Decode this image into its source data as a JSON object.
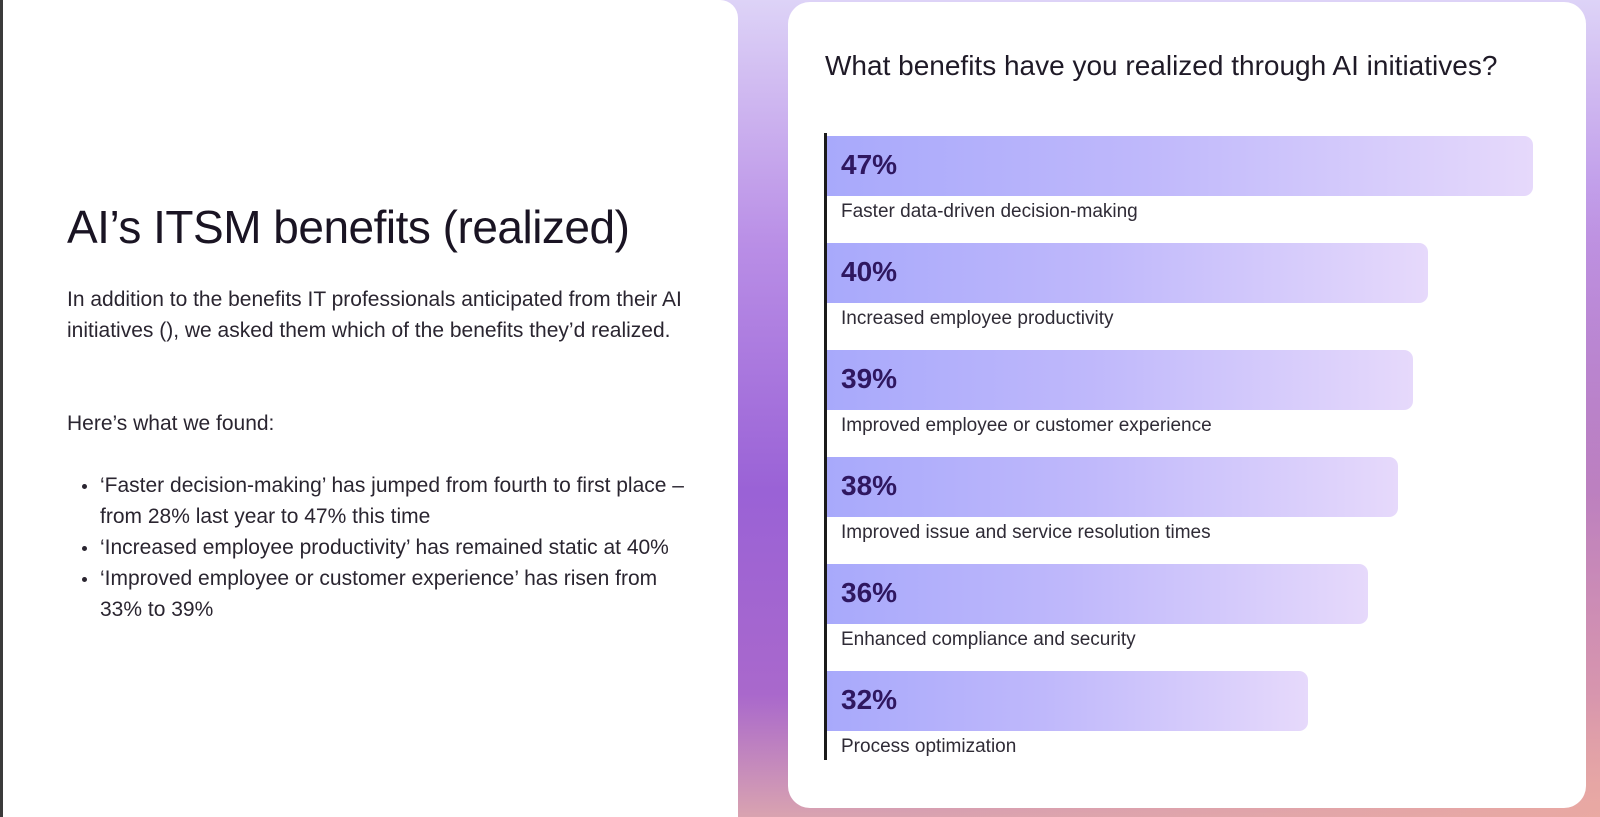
{
  "left": {
    "title": "AI’s ITSM benefits (realized)",
    "intro": "In addition to the benefits IT professionals anticipated from their AI initiatives (), we asked them which of the benefits they’d realized.",
    "found": "Here’s what we found:",
    "bullets": [
      "‘Faster decision-making’ has jumped from fourth to first place – from 28% last year to 47% this time",
      "‘Increased employee productivity’ has remained static at 40%",
      "‘Improved employee or customer experience’ has risen from 33% to 39%"
    ]
  },
  "chart_data": {
    "type": "bar",
    "orientation": "horizontal",
    "title": "What benefits have you realized through AI initiatives?",
    "xlabel": "",
    "ylabel": "",
    "categories": [
      "Faster data-driven decision-making",
      "Increased employee productivity",
      "Improved employee or customer experience",
      "Improved issue and service resolution times",
      "Enhanced compliance and security",
      "Process optimization"
    ],
    "values": [
      47,
      40,
      39,
      38,
      36,
      32
    ],
    "value_labels": [
      "47%",
      "40%",
      "39%",
      "38%",
      "36%",
      "32%"
    ],
    "xlim": [
      0,
      47
    ],
    "grid": false,
    "legend": "none",
    "colors": {
      "bar_start": "#a8a9fb",
      "bar_end": "#e6d9fb",
      "value_text": "#2f1760"
    }
  }
}
